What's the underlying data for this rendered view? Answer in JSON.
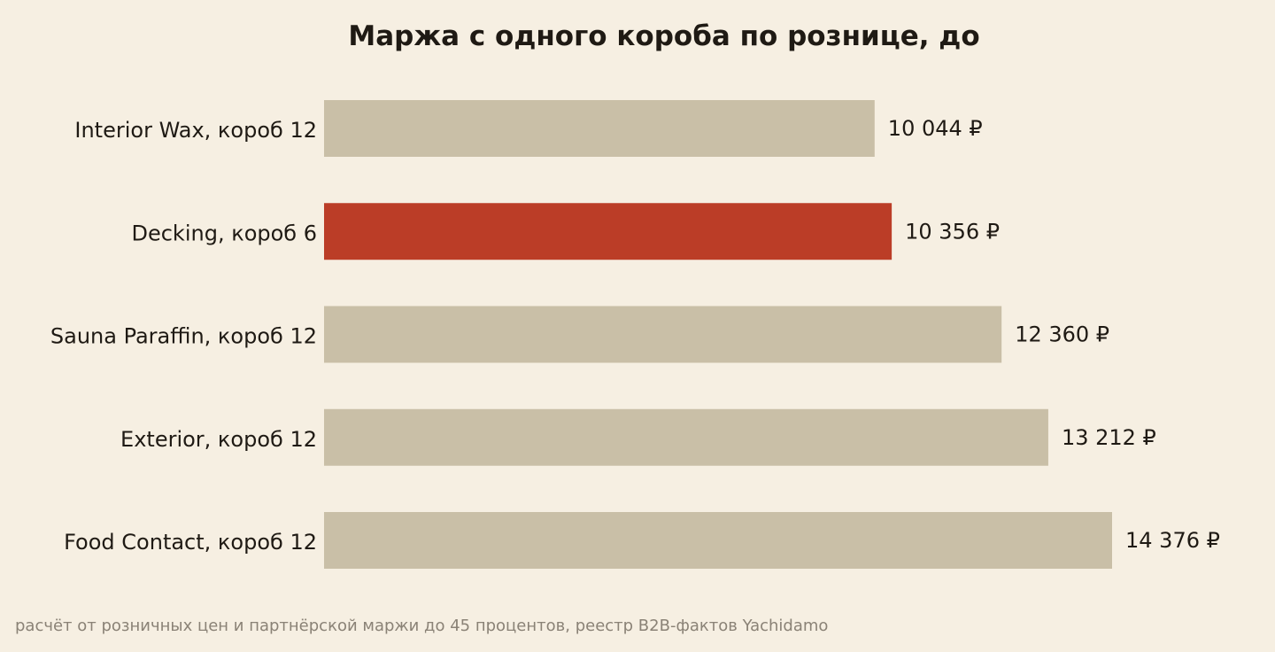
{
  "chart_data": {
    "type": "bar",
    "orientation": "horizontal",
    "title": "Маржа с одного короба по рознице, до",
    "categories": [
      "Interior Wax, короб 12",
      "Decking, короб 6",
      "Sauna Paraffin, короб 12",
      "Exterior, короб 12",
      "Food Contact, короб 12"
    ],
    "values": [
      10044,
      10356,
      12360,
      13212,
      14376
    ],
    "value_labels": [
      "10 044 ₽",
      "10 356 ₽",
      "12 360 ₽",
      "13 212 ₽",
      "14 376 ₽"
    ],
    "highlight_index": 1,
    "xlim": [
      0,
      14376
    ],
    "grid": false,
    "legend": "none"
  },
  "colors": {
    "background": "#f6efe2",
    "bar": "#c9bfa7",
    "highlight": "#bb3d27",
    "text": "#1f1a14",
    "muted": "#8a8276"
  },
  "footnote": "расчёт от розничных цен и партнёрской маржи до 45 процентов, реестр B2B-фактов Yachidamo"
}
